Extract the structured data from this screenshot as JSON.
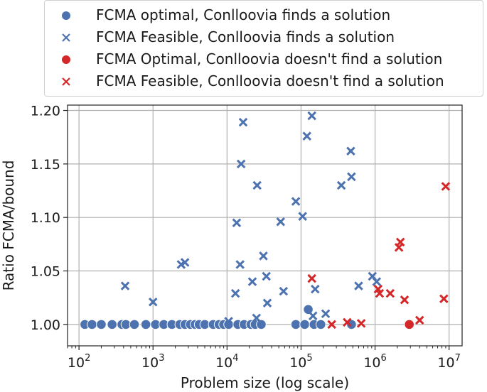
{
  "chart_data": {
    "type": "scatter",
    "title": "",
    "xlabel": "Problem size (log scale)",
    "ylabel": "Ratio FCMA/bound",
    "xscale": "log",
    "xlim": [
      70,
      15000000
    ],
    "ylim": [
      0.98,
      1.205
    ],
    "grid": true,
    "legend_position": "top",
    "x_ticks": [
      {
        "value": 100,
        "base": "10",
        "exp": "2"
      },
      {
        "value": 1000,
        "base": "10",
        "exp": "3"
      },
      {
        "value": 10000,
        "base": "10",
        "exp": "4"
      },
      {
        "value": 100000,
        "base": "10",
        "exp": "5"
      },
      {
        "value": 1000000,
        "base": "10",
        "exp": "6"
      },
      {
        "value": 10000000,
        "base": "10",
        "exp": "7"
      }
    ],
    "y_ticks": [
      1.0,
      1.05,
      1.1,
      1.15,
      1.2
    ],
    "y_tick_labels": [
      "1.00",
      "1.05",
      "1.10",
      "1.15",
      "1.20"
    ],
    "series": [
      {
        "name": "FCMA optimal, Conlloovia finds a solution",
        "marker": "circle",
        "color": "#4c72b0",
        "points": [
          [
            120,
            1.0
          ],
          [
            150,
            1.0
          ],
          [
            200,
            1.0
          ],
          [
            280,
            1.0
          ],
          [
            380,
            1.0
          ],
          [
            430,
            1.0
          ],
          [
            560,
            1.0
          ],
          [
            800,
            1.0
          ],
          [
            1080,
            1.0
          ],
          [
            1400,
            1.0
          ],
          [
            1800,
            1.0
          ],
          [
            2300,
            1.0
          ],
          [
            2700,
            1.0
          ],
          [
            3200,
            1.0
          ],
          [
            3700,
            1.0
          ],
          [
            4200,
            1.0
          ],
          [
            5000,
            1.0
          ],
          [
            6500,
            1.0
          ],
          [
            7800,
            1.0
          ],
          [
            9000,
            1.0
          ],
          [
            10500,
            1.0
          ],
          [
            14000,
            1.0
          ],
          [
            17000,
            1.0
          ],
          [
            21000,
            1.0
          ],
          [
            24000,
            1.0
          ],
          [
            29000,
            1.0
          ],
          [
            85000,
            1.0
          ],
          [
            112000,
            1.0
          ],
          [
            125000,
            1.014
          ],
          [
            150000,
            1.0
          ],
          [
            185000,
            1.0
          ],
          [
            480000,
            1.0
          ]
        ]
      },
      {
        "name": "FCMA Feasible, Conlloovia finds a solution",
        "marker": "x",
        "color": "#4c72b0",
        "points": [
          [
            420,
            1.036
          ],
          [
            1000,
            1.021
          ],
          [
            2400,
            1.056
          ],
          [
            2700,
            1.058
          ],
          [
            10500,
            1.003
          ],
          [
            13000,
            1.029
          ],
          [
            13500,
            1.095
          ],
          [
            15000,
            1.056
          ],
          [
            15500,
            1.15
          ],
          [
            16500,
            1.189
          ],
          [
            22000,
            1.04
          ],
          [
            25000,
            1.006
          ],
          [
            25500,
            1.13
          ],
          [
            31000,
            1.064
          ],
          [
            34000,
            1.045
          ],
          [
            35000,
            1.02
          ],
          [
            53000,
            1.096
          ],
          [
            58000,
            1.031
          ],
          [
            85000,
            1.115
          ],
          [
            105000,
            1.101
          ],
          [
            120000,
            1.176
          ],
          [
            140000,
            1.195
          ],
          [
            145000,
            1.008
          ],
          [
            155000,
            1.033
          ],
          [
            215000,
            1.01
          ],
          [
            350000,
            1.13
          ],
          [
            470000,
            1.162
          ],
          [
            480000,
            1.138
          ],
          [
            600000,
            1.036
          ],
          [
            920000,
            1.045
          ],
          [
            1050000,
            1.04
          ]
        ]
      },
      {
        "name": "FCMA Optimal, Conlloovia doesn't find a solution",
        "marker": "circle",
        "color": "#d62728",
        "points": [
          [
            2900000,
            1.0
          ]
        ]
      },
      {
        "name": "FCMA Feasible, Conlloovia doesn't find a solution",
        "marker": "x",
        "color": "#d62728",
        "points": [
          [
            140000,
            1.043
          ],
          [
            260000,
            1.0
          ],
          [
            420000,
            1.002
          ],
          [
            650000,
            1.001
          ],
          [
            1100000,
            1.033
          ],
          [
            1150000,
            1.029
          ],
          [
            1600000,
            1.029
          ],
          [
            2100000,
            1.072
          ],
          [
            2200000,
            1.077
          ],
          [
            2500000,
            1.023
          ],
          [
            4000000,
            1.004
          ],
          [
            8500000,
            1.024
          ],
          [
            9000000,
            1.129
          ]
        ]
      }
    ]
  }
}
